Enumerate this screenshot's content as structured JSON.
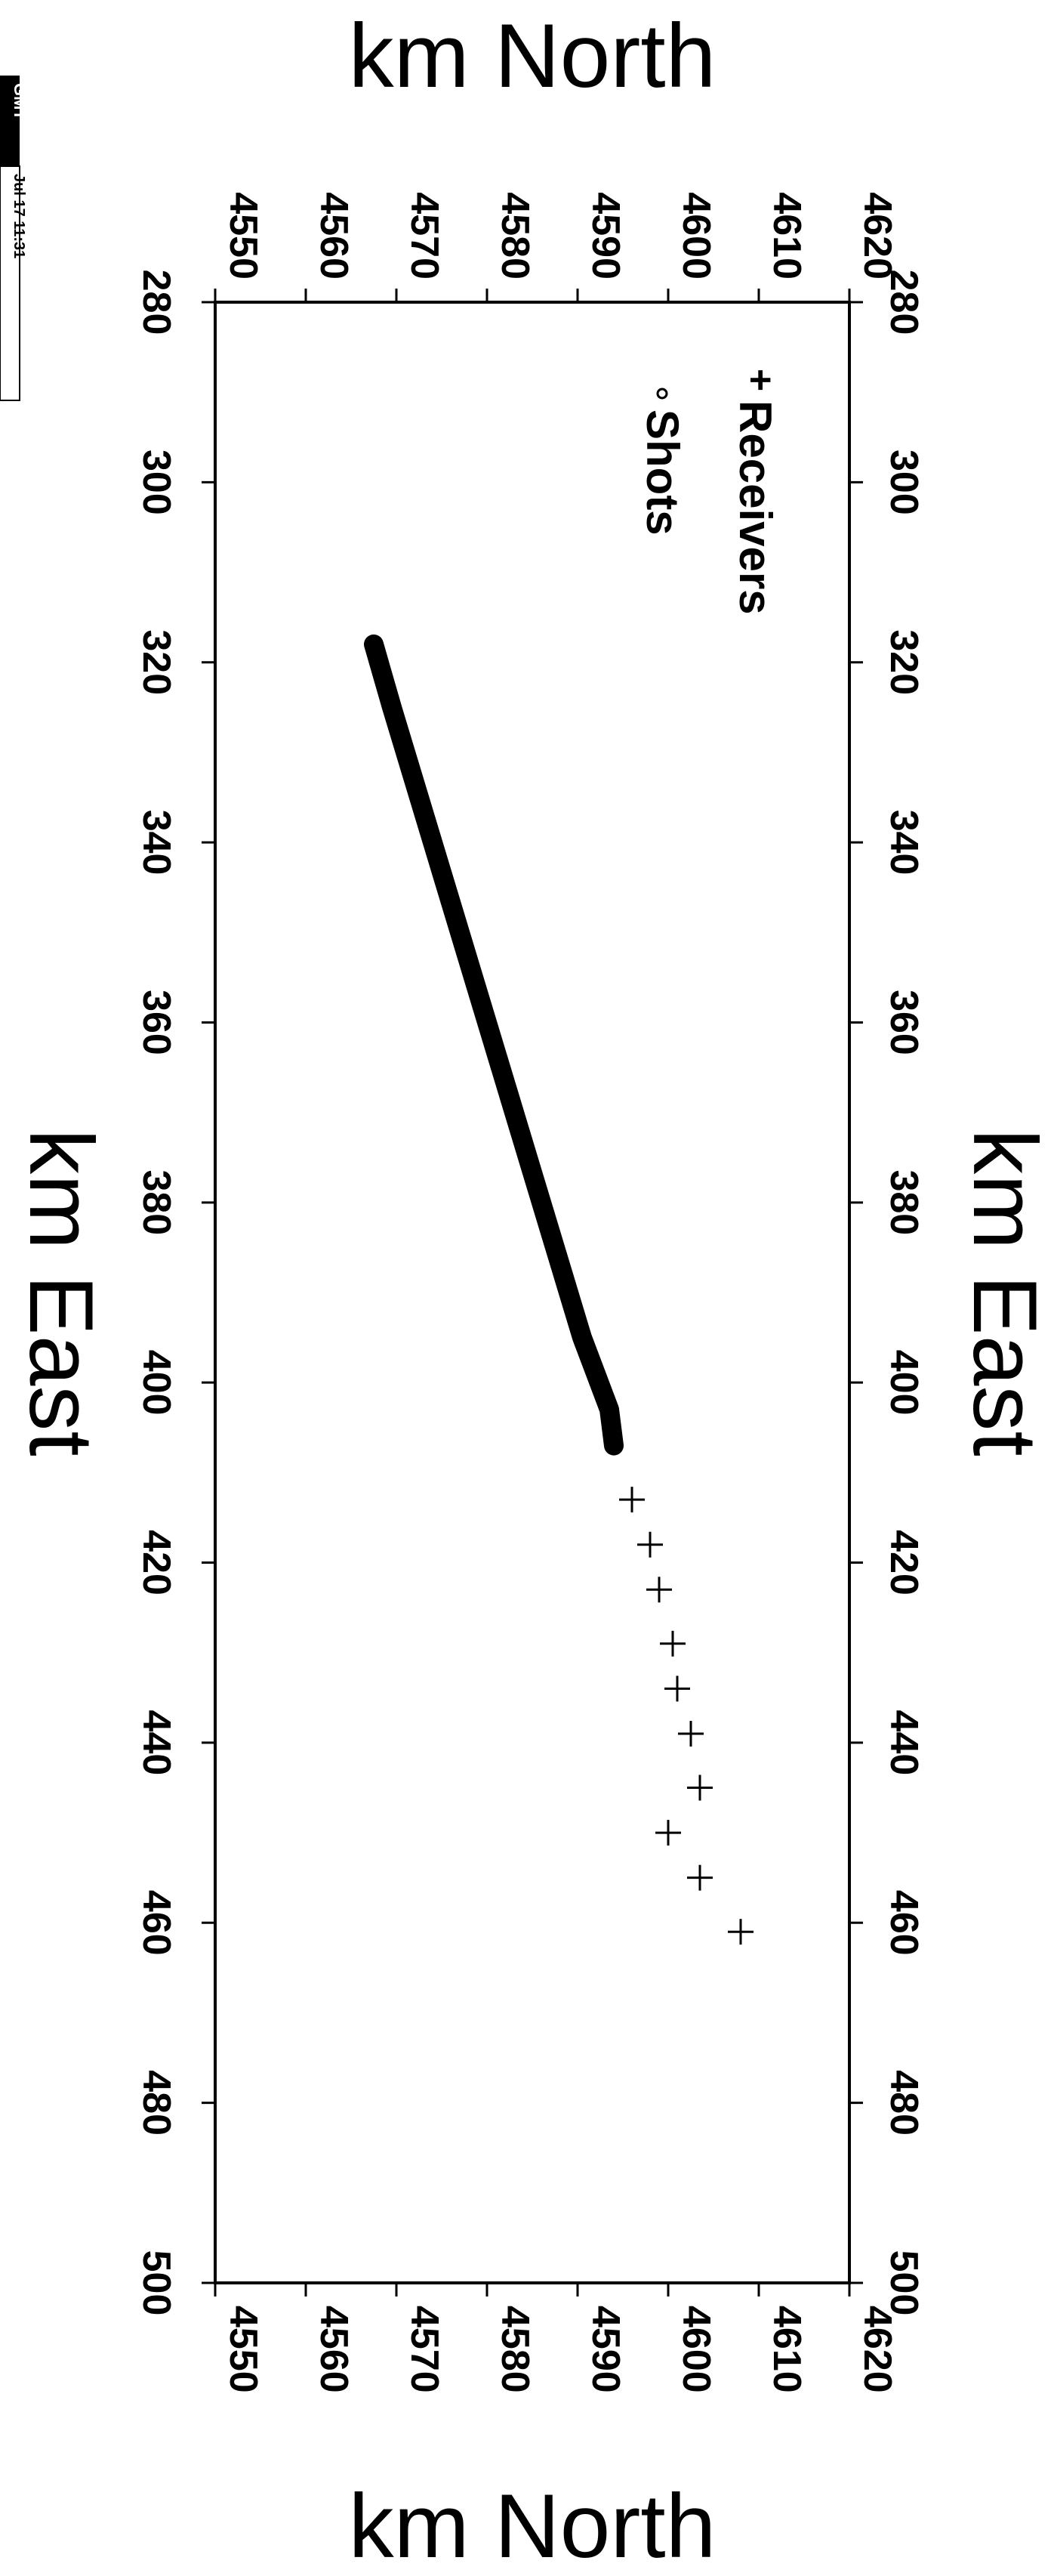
{
  "chart_data": {
    "type": "scatter",
    "orientation": "rotated-90-clockwise",
    "axes": {
      "x": {
        "label_top": "km North",
        "label_bottom": "km North",
        "ylim": [
          4550,
          4620
        ],
        "ticks": [
          4550,
          4560,
          4570,
          4580,
          4590,
          4600,
          4610,
          4620
        ]
      },
      "y": {
        "label_left": "km East",
        "label_right": "km East",
        "lim": [
          280,
          500
        ],
        "ticks": [
          280,
          300,
          320,
          340,
          360,
          380,
          400,
          420,
          440,
          460,
          480,
          500
        ]
      }
    },
    "grid": false,
    "legend": {
      "position": "top-right",
      "entries": [
        {
          "symbol": "+",
          "label": "Receivers"
        },
        {
          "symbol": "o",
          "label": "Shots"
        }
      ]
    },
    "series": [
      {
        "name": "Shots",
        "marker": "circle-dense",
        "x": [
          4567.5,
          4569.5,
          4572.5,
          4575.5,
          4578.5,
          4581.5,
          4584.5,
          4587.5,
          4590.5,
          4593.5,
          4594.0
        ],
        "y": [
          318,
          325,
          335,
          345,
          355,
          365,
          375,
          385,
          395,
          403,
          407
        ]
      },
      {
        "name": "Receivers",
        "marker": "plus",
        "x": [
          4596.0,
          4598.0,
          4599.0,
          4600.5,
          4601.0,
          4602.5,
          4603.5,
          4600.0,
          4603.5,
          4608.0
        ],
        "y": [
          413,
          418,
          423,
          429,
          434,
          439,
          445,
          450,
          455,
          461
        ]
      }
    ],
    "stamp": {
      "logo_text": "GMT",
      "date_text": "Jul 17 11:31"
    }
  }
}
